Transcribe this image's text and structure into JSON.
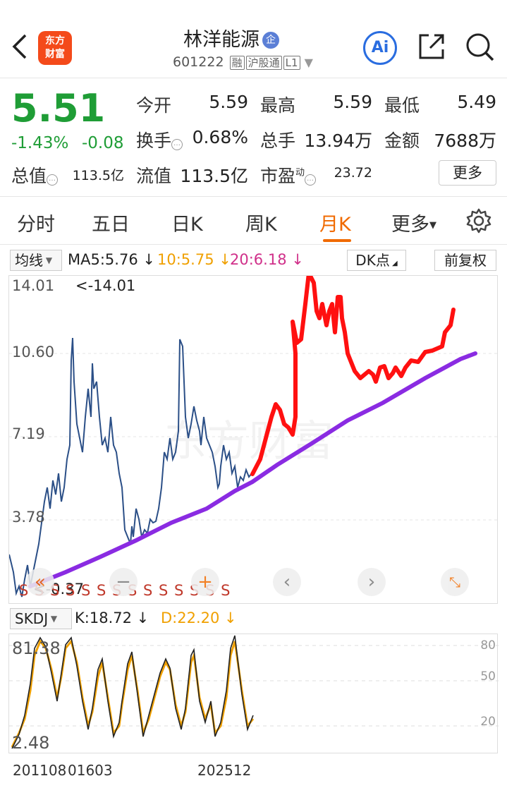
{
  "header": {
    "stock_name": "林洋能源",
    "badge": "企",
    "code": "601222",
    "tags": [
      "融",
      "沪股通",
      "L1"
    ],
    "logo_line1": "东方",
    "logo_line2": "财富",
    "ai_label": "Ai"
  },
  "quote": {
    "price": "5.51",
    "change_pct": "-1.43%",
    "change": "-0.08",
    "open_label": "今开",
    "open": "5.59",
    "high_label": "最高",
    "high": "5.59",
    "low_label": "最低",
    "low": "5.49",
    "turnover_label": "换手",
    "turnover": "0.68%",
    "volume_label": "总手",
    "volume": "13.94万",
    "amount_label": "金额",
    "amount": "7688万",
    "mktcap_label": "总值",
    "mktcap": "113.5亿",
    "float_label": "流值",
    "float": "113.5亿",
    "pe_label": "市盈",
    "pe_sup": "动",
    "pe": "23.72",
    "more": "更多",
    "price_color": "#1f9d36"
  },
  "tabs": [
    "分时",
    "五日",
    "日K",
    "周K",
    "月K",
    "更多"
  ],
  "active_tab": "月K",
  "ma": {
    "selector": "均线",
    "ma5": "MA5:5.76",
    "ma10": "10:5.75",
    "ma20": "20:6.18",
    "dk": "DK点",
    "adjust": "前复权"
  },
  "chart_data": {
    "type": "line",
    "y_ticks": [
      "14.01",
      "10.60",
      "7.19",
      "3.78",
      "0.37"
    ],
    "max_marker": "<-14.01",
    "min_marker": "<-0.37",
    "signals": "S S S S S S S S S S S S S S",
    "series": [
      {
        "name": "MA5",
        "color": "#2b4f87"
      },
      {
        "name": "10",
        "color": "#f0a000"
      },
      {
        "name": "20",
        "color": "#d0308a"
      }
    ],
    "annotation_colors": {
      "trend": "#8a2be2",
      "projection": "#ff0000"
    }
  },
  "kdj": {
    "selector": "SKDJ",
    "k": "K:18.72",
    "d": "D:22.20",
    "y_top": "81.38",
    "y_bottom": "2.48",
    "right_ticks": [
      "80",
      "50",
      "20"
    ],
    "x_labels": [
      "201108",
      "01603",
      "202512"
    ]
  }
}
